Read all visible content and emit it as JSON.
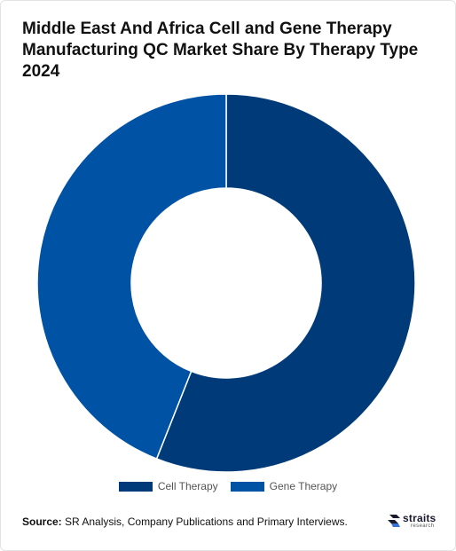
{
  "title": "Middle East And Africa Cell and Gene Therapy Manufacturing QC Market Share By Therapy Type 2024",
  "chart_data": {
    "type": "pie",
    "variant": "donut",
    "title": "Middle East And Africa Cell and Gene Therapy Manufacturing QC Market Share By Therapy Type 2024",
    "categories": [
      "Cell Therapy",
      "Gene Therapy"
    ],
    "values": [
      56,
      44
    ],
    "colors": [
      "#003a78",
      "#0052a5"
    ],
    "legend_position": "bottom"
  },
  "legend": {
    "items": [
      {
        "label": "Cell Therapy",
        "color": "#003a78"
      },
      {
        "label": "Gene Therapy",
        "color": "#0052a5"
      }
    ]
  },
  "source": {
    "prefix": "Source:",
    "text": "SR Analysis, Company Publications and Primary Interviews."
  },
  "logo": {
    "name": "straits",
    "sub": "research",
    "icon": "straits-logo-icon"
  }
}
